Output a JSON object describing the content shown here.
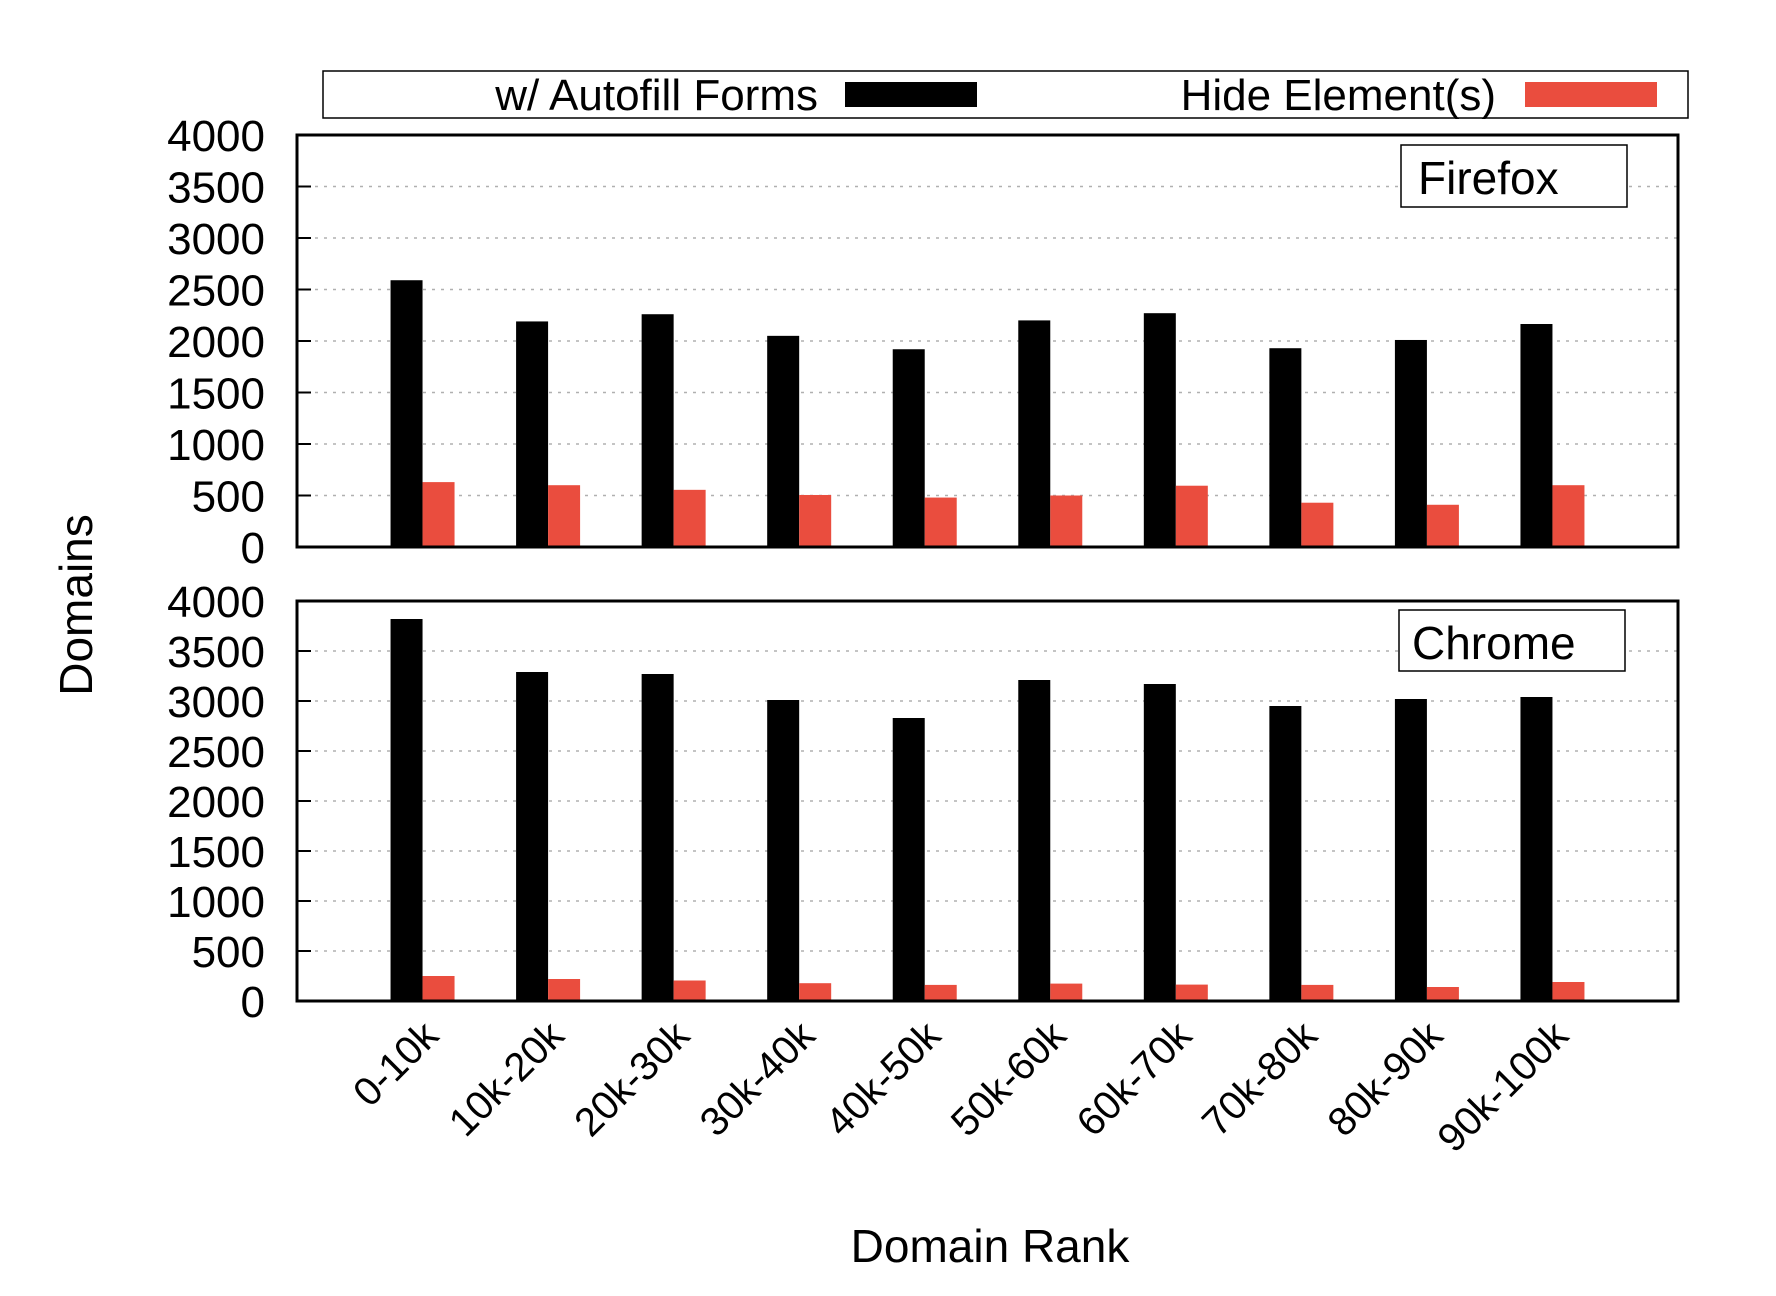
{
  "chart_data": {
    "type": "bar",
    "title": "",
    "xlabel": "Domain Rank",
    "ylabel": "Domains",
    "categories": [
      "0-10k",
      "10k-20k",
      "20k-30k",
      "30k-40k",
      "40k-50k",
      "50k-60k",
      "60k-70k",
      "70k-80k",
      "80k-90k",
      "90k-100k"
    ],
    "legend": {
      "position": "top",
      "entries": [
        {
          "label": "w/ Autofill Forms",
          "color": "#000000"
        },
        {
          "label": "Hide Element(s)",
          "color": "#ea4d3e"
        }
      ]
    },
    "ylim": [
      0,
      4000
    ],
    "yticks": [
      0,
      500,
      1000,
      1500,
      2000,
      2500,
      3000,
      3500,
      4000
    ],
    "grid": {
      "y": true,
      "style": "dotted",
      "color": "#b0b0b0"
    },
    "panels": [
      {
        "label": "Firefox",
        "series": [
          {
            "name": "w/ Autofill Forms",
            "color": "#000000",
            "values": [
              2590,
              2190,
              2260,
              2050,
              1920,
              2200,
              2270,
              1930,
              2010,
              2165
            ]
          },
          {
            "name": "Hide Element(s)",
            "color": "#ea4d3e",
            "values": [
              630,
              600,
              555,
              505,
              480,
              500,
              595,
              430,
              410,
              600
            ]
          }
        ]
      },
      {
        "label": "Chrome",
        "series": [
          {
            "name": "w/ Autofill Forms",
            "color": "#000000",
            "values": [
              3820,
              3290,
              3270,
              3010,
              2830,
              3210,
              3170,
              2950,
              3020,
              3040
            ]
          },
          {
            "name": "Hide Element(s)",
            "color": "#ea4d3e",
            "values": [
              250,
              220,
              205,
              178,
              161,
              174,
              164,
              161,
              140,
              190
            ]
          }
        ]
      }
    ]
  }
}
